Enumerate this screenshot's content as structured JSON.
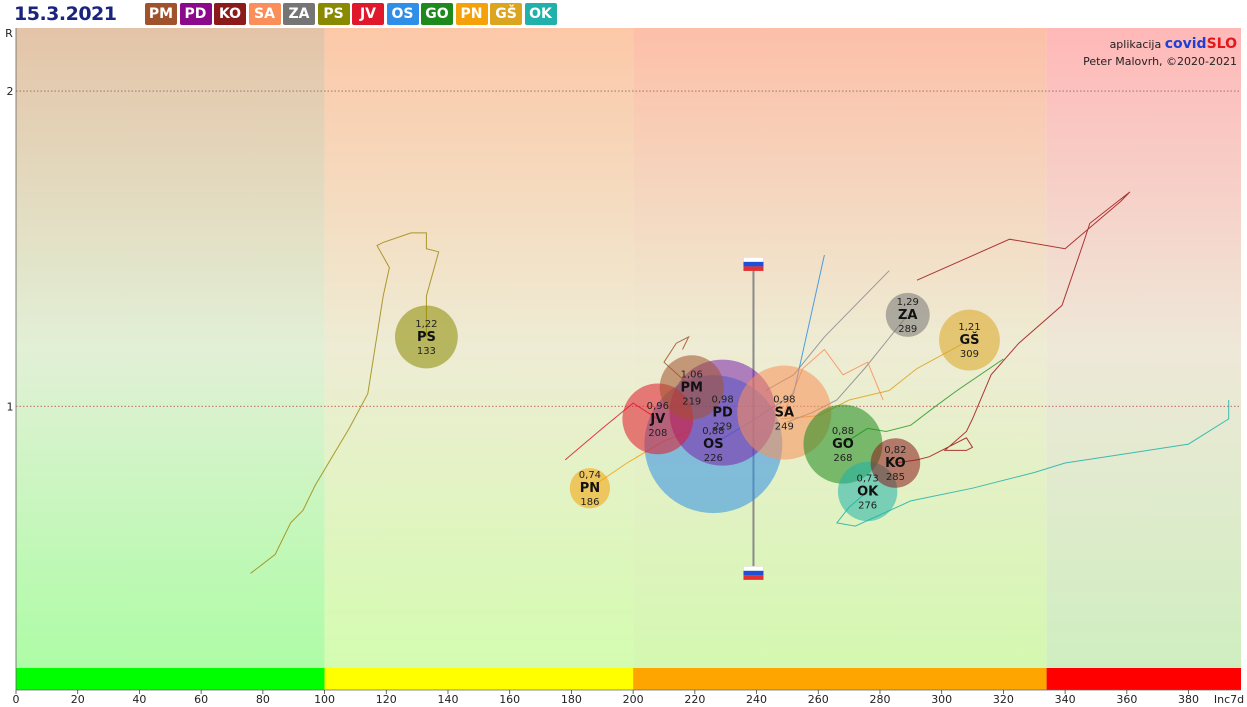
{
  "date": "15.3.2021",
  "credit": {
    "line1_prefix": "aplikacija",
    "brand_a": "covid",
    "brand_b": "SLO",
    "line2": "Peter Malovrh, ©2020-2021"
  },
  "regions": [
    {
      "code": "PM",
      "color": "#a0522d"
    },
    {
      "code": "PD",
      "color": "#8b0a8b"
    },
    {
      "code": "KO",
      "color": "#8b1a1a"
    },
    {
      "code": "SA",
      "color": "#fa8f5a"
    },
    {
      "code": "ZA",
      "color": "#757575"
    },
    {
      "code": "PS",
      "color": "#8a8a00"
    },
    {
      "code": "JV",
      "color": "#e0182c"
    },
    {
      "code": "OS",
      "color": "#2f8fe8"
    },
    {
      "code": "GO",
      "color": "#1e8a1e"
    },
    {
      "code": "PN",
      "color": "#f5a20a"
    },
    {
      "code": "GŠ",
      "color": "#dba520"
    },
    {
      "code": "OK",
      "color": "#20b2aa"
    }
  ],
  "chart_data": {
    "type": "scatter",
    "xlabel": "Inc7d",
    "ylabel": "R",
    "xlim": [
      0,
      397
    ],
    "ylim": [
      0.1,
      2.2
    ],
    "xticks": [
      0,
      20,
      40,
      60,
      80,
      100,
      120,
      140,
      160,
      180,
      200,
      220,
      240,
      260,
      280,
      300,
      320,
      340,
      360,
      380
    ],
    "yticks": [
      1,
      2
    ],
    "hlines": [
      1,
      2
    ],
    "zones": [
      {
        "from": 0,
        "to": 100,
        "color": "#00ff00"
      },
      {
        "from": 100,
        "to": 200,
        "color": "#ffff00"
      },
      {
        "from": 200,
        "to": 334,
        "color": "#ffa500"
      },
      {
        "from": 334,
        "to": 397,
        "color": "#ff0000"
      }
    ],
    "national": {
      "x": 239,
      "r_low": 0.47,
      "r_high": 1.45
    },
    "bubbles": [
      {
        "code": "PM",
        "r": "1,06",
        "inc": "219",
        "x": 219,
        "y": 1.06,
        "pop": 119000,
        "color": "#a0522d"
      },
      {
        "code": "PD",
        "r": "0,98",
        "inc": "229",
        "x": 229,
        "y": 0.98,
        "pop": 325000,
        "color": "#7a22aa"
      },
      {
        "code": "KO",
        "r": "0,82",
        "inc": "285",
        "x": 285,
        "y": 0.82,
        "pop": 71000,
        "color": "#8b1a1a"
      },
      {
        "code": "SA",
        "r": "0,98",
        "inc": "249",
        "x": 249,
        "y": 0.98,
        "pop": 256000,
        "color": "#fa8f5a"
      },
      {
        "code": "ZA",
        "r": "1,29",
        "inc": "289",
        "x": 289,
        "y": 1.29,
        "pop": 56000,
        "color": "#757575"
      },
      {
        "code": "PS",
        "r": "1,22",
        "inc": "133",
        "x": 133,
        "y": 1.22,
        "pop": 114000,
        "color": "#8a8a00"
      },
      {
        "code": "JV",
        "r": "0,96",
        "inc": "208",
        "x": 208,
        "y": 0.96,
        "pop": 145000,
        "color": "#e0182c"
      },
      {
        "code": "OS",
        "r": "0,88",
        "inc": "226",
        "x": 226,
        "y": 0.88,
        "pop": 550000,
        "color": "#2f8fe8"
      },
      {
        "code": "GO",
        "r": "0,88",
        "inc": "268",
        "x": 268,
        "y": 0.88,
        "pop": 180000,
        "color": "#1e8a1e"
      },
      {
        "code": "PN",
        "r": "0,74",
        "inc": "186",
        "x": 186,
        "y": 0.74,
        "pop": 47000,
        "color": "#f5a20a"
      },
      {
        "code": "GŠ",
        "r": "1,21",
        "inc": "309",
        "x": 309,
        "y": 1.21,
        "pop": 107000,
        "color": "#dba520"
      },
      {
        "code": "OK",
        "r": "0,73",
        "inc": "276",
        "x": 276,
        "y": 0.73,
        "pop": 102000,
        "color": "#20b2aa"
      }
    ],
    "trails": [
      {
        "code": "PS",
        "color": "#a08a10",
        "points": [
          [
            76,
            0.47
          ],
          [
            84,
            0.53
          ],
          [
            89,
            0.63
          ],
          [
            93,
            0.67
          ],
          [
            97,
            0.75
          ],
          [
            108,
            0.93
          ],
          [
            114,
            1.04
          ],
          [
            119,
            1.35
          ],
          [
            121,
            1.44
          ],
          [
            117,
            1.51
          ],
          [
            119,
            1.52
          ],
          [
            128,
            1.55
          ],
          [
            133,
            1.55
          ],
          [
            133,
            1.5
          ],
          [
            137,
            1.49
          ],
          [
            133,
            1.35
          ],
          [
            133,
            1.22
          ]
        ]
      },
      {
        "code": "KO",
        "color": "#a01818",
        "points": [
          [
            292,
            1.4
          ],
          [
            322,
            1.53
          ],
          [
            340,
            1.5
          ],
          [
            358,
            1.65
          ],
          [
            361,
            1.68
          ],
          [
            348,
            1.58
          ],
          [
            346,
            1.52
          ],
          [
            339,
            1.32
          ],
          [
            325,
            1.2
          ],
          [
            316,
            1.1
          ],
          [
            310,
            0.96
          ],
          [
            308,
            0.92
          ],
          [
            301,
            0.86
          ],
          [
            308,
            0.86
          ],
          [
            310,
            0.87
          ],
          [
            308,
            0.9
          ],
          [
            296,
            0.84
          ],
          [
            292,
            0.83
          ],
          [
            285,
            0.82
          ]
        ]
      },
      {
        "code": "OK",
        "color": "#20b2aa",
        "points": [
          [
            393,
            1.02
          ],
          [
            393,
            0.96
          ],
          [
            380,
            0.88
          ],
          [
            360,
            0.85
          ],
          [
            340,
            0.82
          ],
          [
            330,
            0.79
          ],
          [
            310,
            0.74
          ],
          [
            290,
            0.7
          ],
          [
            272,
            0.62
          ],
          [
            266,
            0.63
          ],
          [
            270,
            0.68
          ],
          [
            276,
            0.73
          ]
        ]
      },
      {
        "code": "GO",
        "color": "#2a9a2a",
        "points": [
          [
            320,
            1.15
          ],
          [
            305,
            1.05
          ],
          [
            298,
            1.0
          ],
          [
            290,
            0.94
          ],
          [
            282,
            0.92
          ],
          [
            276,
            0.93
          ],
          [
            268,
            0.88
          ]
        ]
      },
      {
        "code": "GŠ",
        "color": "#dba520",
        "points": [
          [
            309,
            1.21
          ],
          [
            292,
            1.12
          ],
          [
            283,
            1.05
          ],
          [
            270,
            1.02
          ],
          [
            260,
            0.97
          ],
          [
            248,
            0.96
          ]
        ]
      },
      {
        "code": "ZA",
        "color": "#8a8a8a",
        "points": [
          [
            289,
            1.29
          ],
          [
            275,
            1.12
          ],
          [
            266,
            1.02
          ],
          [
            258,
            0.98
          ],
          [
            250,
            0.95
          ]
        ]
      },
      {
        "code": "ZA2",
        "color": "#8a8a8a",
        "points": [
          [
            283,
            1.43
          ],
          [
            262,
            1.22
          ],
          [
            252,
            1.1
          ],
          [
            243,
            1.05
          ]
        ]
      },
      {
        "code": "PM",
        "color": "#a0522d",
        "points": [
          [
            219,
            1.06
          ],
          [
            210,
            1.14
          ],
          [
            214,
            1.2
          ],
          [
            218,
            1.22
          ],
          [
            216,
            1.18
          ]
        ]
      },
      {
        "code": "JV",
        "color": "#e0182c",
        "points": [
          [
            178,
            0.83
          ],
          [
            190,
            0.93
          ],
          [
            200,
            1.01
          ],
          [
            208,
            0.96
          ]
        ]
      },
      {
        "code": "PN",
        "color": "#f5a20a",
        "points": [
          [
            186,
            0.74
          ],
          [
            198,
            0.82
          ],
          [
            210,
            0.89
          ],
          [
            218,
            0.92
          ]
        ]
      },
      {
        "code": "SA",
        "color": "#fa8f5a",
        "points": [
          [
            249,
            0.98
          ],
          [
            255,
            1.12
          ],
          [
            262,
            1.18
          ],
          [
            268,
            1.1
          ],
          [
            276,
            1.14
          ],
          [
            281,
            1.02
          ]
        ]
      },
      {
        "code": "OS",
        "color": "#2f8fe8",
        "points": [
          [
            226,
            0.88
          ],
          [
            238,
            0.95
          ],
          [
            252,
            1.04
          ],
          [
            262,
            1.48
          ]
        ]
      }
    ]
  }
}
